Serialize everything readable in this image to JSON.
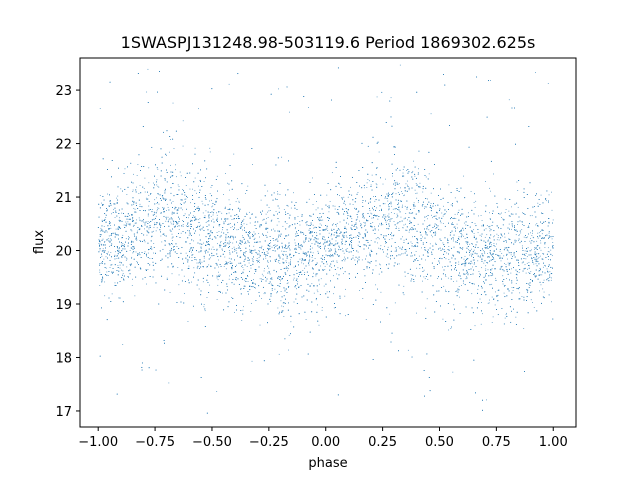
{
  "chart_data": {
    "type": "scatter",
    "title": "1SWASPJ131248.98-503119.6 Period 1869302.625s",
    "xlabel": "phase",
    "ylabel": "flux",
    "xlim": [
      -1.08,
      1.1
    ],
    "ylim": [
      16.7,
      23.6
    ],
    "x_ticks": [
      -1.0,
      -0.75,
      -0.5,
      -0.25,
      0.0,
      0.25,
      0.5,
      0.75,
      1.0
    ],
    "x_tick_labels": [
      "−1.00",
      "−0.75",
      "−0.50",
      "−0.25",
      "0.00",
      "0.25",
      "0.50",
      "0.75",
      "1.00"
    ],
    "y_ticks": [
      17,
      18,
      19,
      20,
      21,
      22,
      23
    ],
    "y_tick_labels": [
      "17",
      "18",
      "19",
      "20",
      "21",
      "22",
      "23"
    ],
    "grid": false,
    "point_color": "#1f77b4",
    "series": [
      {
        "x": [
          -1.0,
          -0.95,
          -0.9,
          -0.85,
          -0.8,
          -0.75,
          -0.7,
          -0.65,
          -0.6,
          -0.55,
          -0.5,
          -0.45,
          -0.4,
          -0.35,
          -0.3,
          -0.25,
          -0.2,
          -0.15,
          -0.1,
          -0.05,
          0.0,
          0.05,
          0.1,
          0.15,
          0.2,
          0.25,
          0.3,
          0.35,
          0.4,
          0.45,
          0.5,
          0.55,
          0.6,
          0.65,
          0.7,
          0.75,
          0.8,
          0.85,
          0.9,
          0.95,
          1.0
        ],
        "values": [
          20.1,
          20.2,
          20.2,
          20.3,
          20.4,
          20.6,
          20.7,
          20.6,
          20.4,
          20.3,
          20.2,
          20.1,
          20.0,
          19.9,
          19.9,
          20.0,
          19.9,
          19.8,
          19.9,
          20.0,
          20.1,
          20.2,
          20.2,
          20.3,
          20.4,
          20.6,
          20.7,
          20.6,
          20.4,
          20.3,
          20.2,
          20.1,
          20.0,
          19.9,
          19.9,
          20.0,
          19.9,
          19.8,
          19.9,
          20.0,
          20.0
        ],
        "spread": [
          0.45,
          0.5,
          0.5,
          0.55,
          0.6,
          0.6,
          0.65,
          0.6,
          0.6,
          0.6,
          0.6,
          0.6,
          0.55,
          0.55,
          0.5,
          0.5,
          0.55,
          0.6,
          0.5,
          0.5,
          0.45,
          0.5,
          0.5,
          0.55,
          0.6,
          0.6,
          0.65,
          0.6,
          0.6,
          0.6,
          0.6,
          0.6,
          0.55,
          0.55,
          0.5,
          0.5,
          0.55,
          0.6,
          0.5,
          0.5,
          0.45
        ]
      }
    ]
  }
}
